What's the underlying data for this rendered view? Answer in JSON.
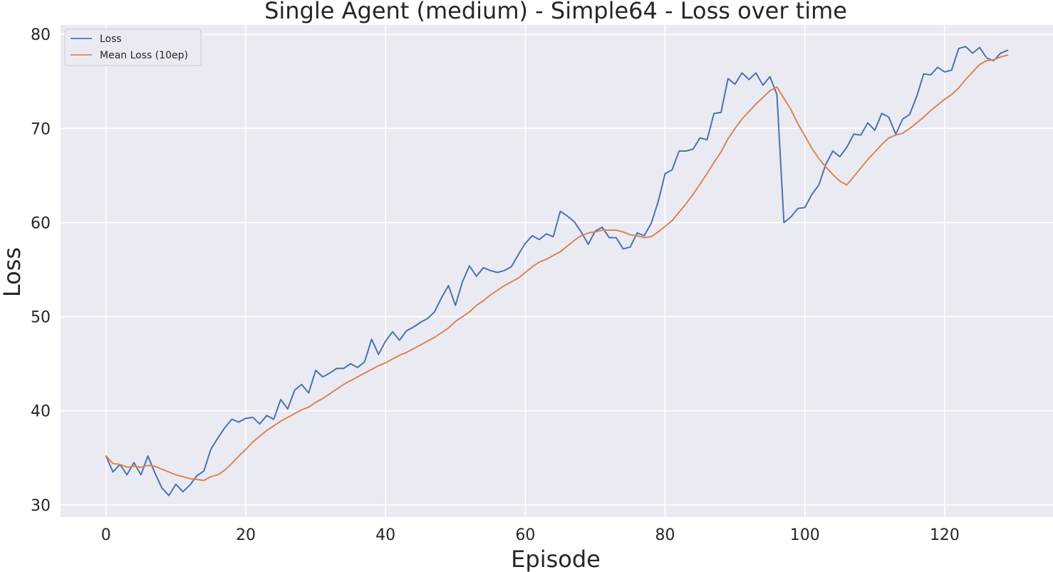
{
  "chart_data": {
    "type": "line",
    "title": "Single Agent (medium) - Simple64 - Loss over time",
    "xlabel": "Episode",
    "ylabel": "Loss",
    "xlim": [
      -6.5,
      135.5
    ],
    "ylim": [
      28.7,
      81.0
    ],
    "xticks": [
      0,
      20,
      40,
      60,
      80,
      100,
      120
    ],
    "yticks": [
      30,
      40,
      50,
      60,
      70,
      80
    ],
    "grid": true,
    "legend_position": "top-left",
    "x": [
      0,
      1,
      2,
      3,
      4,
      5,
      6,
      7,
      8,
      9,
      10,
      11,
      12,
      13,
      14,
      15,
      16,
      17,
      18,
      19,
      20,
      21,
      22,
      23,
      24,
      25,
      26,
      27,
      28,
      29,
      30,
      31,
      32,
      33,
      34,
      35,
      36,
      37,
      38,
      39,
      40,
      41,
      42,
      43,
      44,
      45,
      46,
      47,
      48,
      49,
      50,
      51,
      52,
      53,
      54,
      55,
      56,
      57,
      58,
      59,
      60,
      61,
      62,
      63,
      64,
      65,
      66,
      67,
      68,
      69,
      70,
      71,
      72,
      73,
      74,
      75,
      76,
      77,
      78,
      79,
      80,
      81,
      82,
      83,
      84,
      85,
      86,
      87,
      88,
      89,
      90,
      91,
      92,
      93,
      94,
      95,
      96,
      97,
      98,
      99,
      100,
      101,
      102,
      103,
      104,
      105,
      106,
      107,
      108,
      109,
      110,
      111,
      112,
      113,
      114,
      115,
      116,
      117,
      118,
      119,
      120,
      121,
      122,
      123,
      124,
      125,
      126,
      127,
      128,
      129
    ],
    "series": [
      {
        "name": "Loss",
        "color": "#4c72b0",
        "values": [
          35.2,
          33.5,
          34.3,
          33.2,
          34.5,
          33.2,
          35.2,
          33.4,
          31.8,
          31.0,
          32.2,
          31.4,
          32.1,
          33.1,
          33.6,
          35.9,
          37.1,
          38.2,
          39.1,
          38.8,
          39.2,
          39.3,
          38.6,
          39.5,
          39.1,
          41.2,
          40.2,
          42.2,
          42.8,
          41.9,
          44.3,
          43.6,
          44.0,
          44.5,
          44.5,
          45.0,
          44.6,
          45.2,
          47.6,
          46.0,
          47.4,
          48.4,
          47.5,
          48.5,
          48.9,
          49.4,
          49.8,
          50.5,
          52.0,
          53.3,
          51.2,
          53.7,
          55.4,
          54.3,
          55.2,
          54.9,
          54.7,
          54.9,
          55.3,
          56.6,
          57.8,
          58.6,
          58.2,
          58.8,
          58.5,
          61.2,
          60.7,
          60.1,
          59.0,
          57.7,
          59.1,
          59.5,
          58.4,
          58.4,
          57.2,
          57.4,
          58.9,
          58.6,
          59.9,
          62.2,
          65.2,
          65.6,
          67.6,
          67.6,
          67.8,
          69.0,
          68.8,
          71.6,
          71.7,
          75.3,
          74.7,
          75.9,
          75.2,
          75.9,
          74.6,
          75.5,
          73.6,
          60.0,
          60.6,
          61.5,
          61.6,
          63.0,
          64.0,
          66.2,
          67.6,
          67.0,
          68.0,
          69.4,
          69.3,
          70.6,
          69.8,
          71.6,
          71.2,
          69.4,
          71.0,
          71.5,
          73.4,
          75.8,
          75.7,
          76.5,
          76.0,
          76.2,
          78.5,
          78.7,
          78.0,
          78.6,
          77.5,
          77.2,
          78.0,
          78.3
        ]
      },
      {
        "name": "Mean Loss (10ep)",
        "color": "#dd8452",
        "values": [
          35.2,
          34.4,
          34.3,
          34.0,
          34.1,
          34.0,
          34.2,
          34.1,
          33.8,
          33.5,
          33.2,
          33.0,
          32.8,
          32.7,
          32.6,
          33.0,
          33.2,
          33.7,
          34.4,
          35.2,
          35.9,
          36.7,
          37.3,
          37.9,
          38.4,
          38.9,
          39.3,
          39.7,
          40.1,
          40.4,
          40.9,
          41.3,
          41.8,
          42.3,
          42.8,
          43.2,
          43.6,
          44.0,
          44.4,
          44.8,
          45.1,
          45.5,
          45.9,
          46.2,
          46.6,
          47.0,
          47.4,
          47.8,
          48.3,
          48.8,
          49.5,
          50.0,
          50.5,
          51.2,
          51.7,
          52.3,
          52.8,
          53.3,
          53.7,
          54.1,
          54.7,
          55.3,
          55.8,
          56.1,
          56.5,
          56.9,
          57.5,
          58.1,
          58.6,
          58.9,
          59.0,
          59.2,
          59.2,
          59.2,
          59.0,
          58.7,
          58.6,
          58.4,
          58.5,
          59.0,
          59.6,
          60.2,
          61.1,
          62.0,
          63.0,
          64.1,
          65.2,
          66.4,
          67.5,
          68.9,
          70.0,
          71.0,
          71.8,
          72.6,
          73.3,
          74.0,
          74.4,
          73.2,
          72.0,
          70.5,
          69.2,
          67.9,
          66.8,
          65.9,
          65.1,
          64.4,
          64.0,
          64.9,
          65.8,
          66.7,
          67.5,
          68.3,
          69.0,
          69.3,
          69.5,
          70.0,
          70.6,
          71.2,
          71.9,
          72.5,
          73.1,
          73.6,
          74.3,
          75.2,
          76.0,
          76.8,
          77.2,
          77.3,
          77.6,
          77.8
        ]
      }
    ]
  }
}
